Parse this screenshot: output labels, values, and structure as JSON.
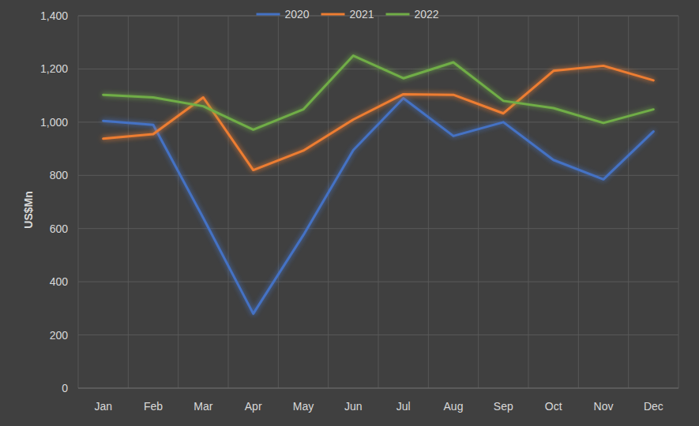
{
  "chart_data": {
    "type": "line",
    "y_label": "US$Mn",
    "categories": [
      "Jan",
      "Feb",
      "Mar",
      "Apr",
      "May",
      "Jun",
      "Jul",
      "Aug",
      "Sep",
      "Oct",
      "Nov",
      "Dec"
    ],
    "series": [
      {
        "name": "2020",
        "color": "#4472c4",
        "values": [
          1005,
          990,
          640,
          280,
          575,
          895,
          1090,
          948,
          1000,
          858,
          785,
          965
        ]
      },
      {
        "name": "2021",
        "color": "#ed7d31",
        "values": [
          938,
          955,
          1093,
          820,
          893,
          1010,
          1105,
          1103,
          1033,
          1193,
          1212,
          1157
        ]
      },
      {
        "name": "2022",
        "color": "#70ad47",
        "values": [
          1103,
          1093,
          1060,
          972,
          1048,
          1250,
          1165,
          1225,
          1080,
          1053,
          997,
          1048
        ]
      }
    ],
    "ylim": [
      0,
      1400
    ],
    "yticks": [
      0,
      200,
      400,
      600,
      800,
      {
        "value": 1000,
        "label": "1,000"
      },
      {
        "value": 1200,
        "label": "1,200"
      },
      {
        "value": 1400,
        "label": "1,400"
      }
    ],
    "grid": true,
    "legend": "top"
  }
}
